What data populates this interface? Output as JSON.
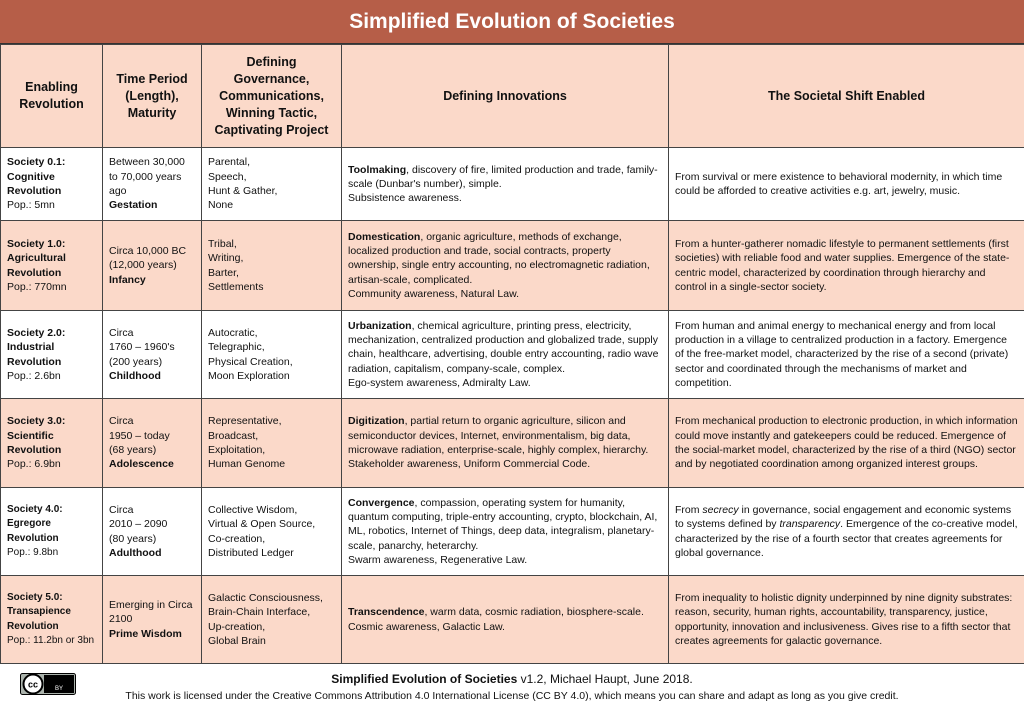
{
  "header": {
    "title": "Simplified Evolution of Societies"
  },
  "table": {
    "columns": [
      "Enabling Revolution",
      "Time Period (Length), Maturity",
      "Defining Governance, Communications, Winning Tactic, Captivating Project",
      "Defining Innovations",
      "The Societal Shift Enabled"
    ],
    "rows": [
      {
        "society": "Society 0.1:",
        "revolution": "Cognitive Revolution",
        "pop": "Pop.: 5mn",
        "period": [
          "Between 30,000 to 70,000 years ago"
        ],
        "maturity": "Gestation",
        "governance": [
          "Parental,",
          "Speech,",
          "Hunt & Gather,",
          "None"
        ],
        "innovation_term": "Toolmaking",
        "innovation_text": ", discovery of fire, limited production and trade, family-scale (Dunbar's number), simple.",
        "awareness": "Subsistence awareness.",
        "shift": [
          {
            "text": "From survival or mere existence to behavioral modernity, in which time could be afforded to creative activities e.g. art, jewelry, music."
          }
        ]
      },
      {
        "society": "Society 1.0:",
        "revolution": "Agricultural Revolution",
        "pop": "Pop.: 770mn",
        "period": [
          "Circa 10,000 BC",
          "(12,000 years)"
        ],
        "maturity": "Infancy",
        "governance": [
          "Tribal,",
          "Writing,",
          "Barter,",
          "Settlements"
        ],
        "innovation_term": "Domestication",
        "innovation_text": ", organic agriculture, methods of exchange, localized production and trade, social contracts, property ownership, single entry accounting, no electromagnetic radiation, artisan-scale, complicated.",
        "awareness": "Community awareness, Natural Law.",
        "shift": [
          {
            "text": "From a hunter-gatherer nomadic lifestyle to permanent settlements (first societies) with reliable food and water supplies. Emergence of the state-centric model, characterized by coordination through hierarchy and control in a single-sector society."
          }
        ]
      },
      {
        "society": "Society 2.0:",
        "revolution": "Industrial Revolution",
        "pop": "Pop.: 2.6bn",
        "period": [
          "Circa",
          "1760 – 1960's",
          "(200 years)"
        ],
        "maturity": "Childhood",
        "governance": [
          "Autocratic,",
          "Telegraphic,",
          "Physical Creation,",
          "Moon Exploration"
        ],
        "innovation_term": "Urbanization",
        "innovation_text": ", chemical agriculture, printing press, electricity, mechanization, centralized production and globalized trade, supply chain, healthcare, advertising, double entry accounting, radio wave radiation, capitalism, company-scale, complex.",
        "awareness": "Ego-system awareness, Admiralty Law.",
        "shift": [
          {
            "text": "From human and animal energy to mechanical energy and from local production in a village to centralized production in a factory. Emergence of the free-market model, characterized by the rise of a second (private) sector and coordinated through the mechanisms of market and competition."
          }
        ]
      },
      {
        "society": "Society 3.0:",
        "revolution": "Scientific Revolution",
        "pop": "Pop.: 6.9bn",
        "period": [
          "Circa",
          "1950 – today",
          "(68 years)"
        ],
        "maturity": "Adolescence",
        "governance": [
          "Representative,",
          "Broadcast,",
          "Exploitation,",
          "Human Genome"
        ],
        "innovation_term": "Digitization",
        "innovation_text": ", partial return to organic agriculture, silicon and semiconductor devices, Internet, environmentalism, big data, microwave radiation, enterprise-scale, highly complex, hierarchy.",
        "awareness": "Stakeholder awareness, Uniform Commercial Code.",
        "shift": [
          {
            "text": "From mechanical production to electronic production, in which information could move instantly and gatekeepers could be reduced. Emergence of the social-market model, characterized by the rise of a third (NGO) sector and by negotiated coordination among organized interest groups."
          }
        ]
      },
      {
        "society": "Society 4.0:",
        "revolution": "Egregore Revolution",
        "pop": "Pop.: 9.8bn",
        "period": [
          "Circa",
          "2010 – 2090",
          "(80 years)"
        ],
        "maturity": "Adulthood",
        "governance": [
          "Collective Wisdom,",
          "Virtual & Open Source,",
          "Co-creation,",
          "Distributed Ledger"
        ],
        "innovation_term": "Convergence",
        "innovation_text": ", compassion, operating system for humanity, quantum computing, triple-entry accounting, crypto, blockchain, AI, ML, robotics, Internet of Things, deep data, integralism, planetary-scale, panarchy, heterarchy.",
        "awareness": "Swarm awareness, Regenerative Law.",
        "shift": [
          {
            "text": "From "
          },
          {
            "text": "secrecy",
            "italic": true
          },
          {
            "text": " in governance, social engagement and economic systems to systems defined by "
          },
          {
            "text": "transparency",
            "italic": true
          },
          {
            "text": ". Emergence of the co-creative model, characterized by the rise of a fourth sector that creates agreements for global governance."
          }
        ]
      },
      {
        "society": "Society 5.0:",
        "revolution": "Transapience Revolution",
        "pop": "Pop.: 11.2bn or 3bn",
        "period": [
          "Emerging in Circa 2100"
        ],
        "maturity": "Prime Wisdom",
        "governance": [
          "Galactic Consciousness,",
          "Brain-Chain Interface,",
          "Up-creation,",
          "Global Brain"
        ],
        "innovation_term": "Transcendence",
        "innovation_text": ", warm data, cosmic radiation, biosphere-scale.",
        "awareness": "Cosmic awareness, Galactic Law.",
        "shift": [
          {
            "text": "From inequality to holistic dignity underpinned by nine dignity substrates: reason, security, human rights, accountability, transparency, justice, opportunity, innovation and inclusiveness. Gives rise to a fifth sector that creates agreements for galactic governance."
          }
        ]
      }
    ]
  },
  "footer": {
    "title": "Simplified Evolution of Societies",
    "version": " v1.2, Michael Haupt, June 2018.",
    "license": "This work is licensed under the Creative Commons Attribution 4.0 International License (CC BY 4.0), which means you can share and adapt as long as you give credit.",
    "badge": [
      "cc",
      "BY"
    ]
  }
}
